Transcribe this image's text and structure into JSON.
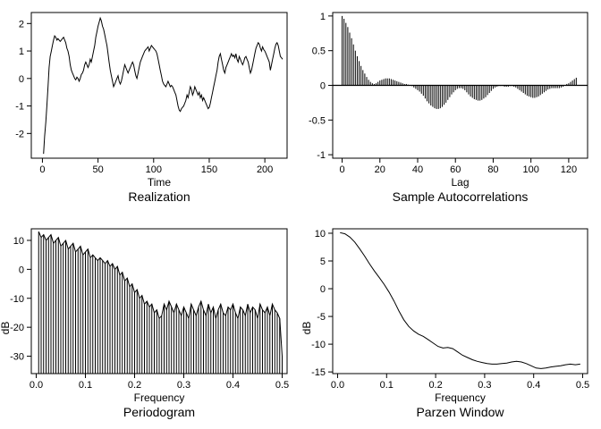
{
  "chart_data": [
    {
      "id": "realization",
      "type": "line",
      "title": "Realization",
      "xlabel": "Time",
      "ylabel": "",
      "xlim": [
        -10,
        220
      ],
      "ylim": [
        -2.9,
        2.4
      ],
      "xticks": [
        0,
        50,
        100,
        150,
        200
      ],
      "yticks": [
        -2,
        -1,
        0,
        1,
        2
      ],
      "x_start": 1,
      "x_step": 1,
      "values": [
        -2.74,
        -2.1,
        -1.6,
        -1.0,
        -0.3,
        0.4,
        0.8,
        1.0,
        1.2,
        1.4,
        1.55,
        1.5,
        1.4,
        1.45,
        1.4,
        1.35,
        1.4,
        1.45,
        1.5,
        1.4,
        1.3,
        1.1,
        1.0,
        0.8,
        0.5,
        0.3,
        0.2,
        0.1,
        0.0,
        -0.05,
        0.05,
        0.0,
        -0.1,
        0.0,
        0.15,
        0.2,
        0.3,
        0.5,
        0.6,
        0.5,
        0.4,
        0.5,
        0.7,
        0.6,
        0.8,
        1.0,
        1.2,
        1.5,
        1.7,
        1.9,
        2.05,
        2.2,
        2.1,
        1.9,
        1.8,
        1.6,
        1.4,
        1.2,
        0.9,
        0.6,
        0.3,
        0.1,
        -0.1,
        -0.3,
        -0.2,
        -0.1,
        0.0,
        0.1,
        -0.1,
        -0.2,
        -0.1,
        0.1,
        0.3,
        0.5,
        0.4,
        0.3,
        0.2,
        0.3,
        0.4,
        0.5,
        0.6,
        0.5,
        0.3,
        0.1,
        0.0,
        0.2,
        0.4,
        0.6,
        0.7,
        0.8,
        0.9,
        1.0,
        1.05,
        1.1,
        1.15,
        1.0,
        1.1,
        1.2,
        1.15,
        1.1,
        1.05,
        1.0,
        0.9,
        0.7,
        0.5,
        0.3,
        0.1,
        -0.1,
        -0.2,
        -0.25,
        -0.3,
        -0.2,
        -0.1,
        -0.2,
        -0.3,
        -0.25,
        -0.3,
        -0.4,
        -0.5,
        -0.6,
        -0.8,
        -1.0,
        -1.15,
        -1.2,
        -1.1,
        -1.05,
        -1.0,
        -0.9,
        -0.8,
        -0.6,
        -0.7,
        -0.5,
        -0.3,
        -0.4,
        -0.6,
        -0.5,
        -0.3,
        -0.4,
        -0.5,
        -0.6,
        -0.5,
        -0.7,
        -0.6,
        -0.8,
        -0.7,
        -0.8,
        -0.9,
        -1.0,
        -1.1,
        -1.05,
        -0.9,
        -0.7,
        -0.5,
        -0.3,
        -0.1,
        0.1,
        0.3,
        0.6,
        0.8,
        0.9,
        0.7,
        0.5,
        0.3,
        0.2,
        0.4,
        0.5,
        0.6,
        0.7,
        0.8,
        0.9,
        0.8,
        0.85,
        0.75,
        0.9,
        0.7,
        0.6,
        0.8,
        0.7,
        0.6,
        0.5,
        0.6,
        0.75,
        0.8,
        0.7,
        0.6,
        0.4,
        0.2,
        0.3,
        0.5,
        0.7,
        0.9,
        1.1,
        1.2,
        1.3,
        1.25,
        1.1,
        1.0,
        1.15,
        1.05,
        1.0,
        0.9,
        0.8,
        0.7,
        0.6,
        0.3,
        0.5,
        0.7,
        0.9,
        1.1,
        1.25,
        1.3,
        1.2,
        1.0,
        0.8,
        0.75,
        0.7
      ]
    },
    {
      "id": "sample-autocorrelations",
      "type": "bar",
      "title": "Sample Autocorrelations",
      "xlabel": "Lag",
      "ylabel": "",
      "xlim": [
        -5,
        130
      ],
      "ylim": [
        -1.05,
        1.05
      ],
      "xticks": [
        0,
        20,
        40,
        60,
        80,
        100,
        120
      ],
      "yticks": [
        -1.0,
        -0.5,
        0.0,
        0.5,
        1.0
      ],
      "x_start": 0,
      "x_step": 1,
      "values": [
        1.0,
        0.96,
        0.9,
        0.84,
        0.76,
        0.68,
        0.59,
        0.5,
        0.42,
        0.35,
        0.28,
        0.22,
        0.17,
        0.12,
        0.08,
        0.05,
        0.03,
        0.02,
        0.03,
        0.05,
        0.07,
        0.08,
        0.09,
        0.1,
        0.1,
        0.1,
        0.09,
        0.08,
        0.07,
        0.06,
        0.05,
        0.04,
        0.03,
        0.02,
        0.02,
        0.01,
        0.0,
        -0.01,
        -0.03,
        -0.05,
        -0.07,
        -0.09,
        -0.12,
        -0.15,
        -0.19,
        -0.23,
        -0.26,
        -0.29,
        -0.31,
        -0.33,
        -0.34,
        -0.34,
        -0.33,
        -0.31,
        -0.28,
        -0.25,
        -0.21,
        -0.17,
        -0.13,
        -0.1,
        -0.07,
        -0.05,
        -0.04,
        -0.04,
        -0.05,
        -0.07,
        -0.1,
        -0.13,
        -0.16,
        -0.18,
        -0.2,
        -0.21,
        -0.22,
        -0.22,
        -0.21,
        -0.19,
        -0.17,
        -0.14,
        -0.11,
        -0.08,
        -0.05,
        -0.03,
        -0.02,
        -0.01,
        -0.01,
        -0.01,
        -0.02,
        -0.02,
        -0.02,
        -0.01,
        -0.01,
        -0.02,
        -0.03,
        -0.05,
        -0.07,
        -0.09,
        -0.11,
        -0.13,
        -0.15,
        -0.16,
        -0.17,
        -0.18,
        -0.18,
        -0.17,
        -0.16,
        -0.14,
        -0.12,
        -0.1,
        -0.08,
        -0.06,
        -0.05,
        -0.04,
        -0.04,
        -0.04,
        -0.04,
        -0.04,
        -0.03,
        -0.02,
        0.0,
        0.02,
        0.03,
        0.05,
        0.07,
        0.09,
        0.11
      ]
    },
    {
      "id": "periodogram",
      "type": "bar",
      "title": "Periodogram",
      "xlabel": "Frequency",
      "ylabel": "dB",
      "xlim": [
        -0.01,
        0.51
      ],
      "ylim": [
        -36,
        14
      ],
      "baseline": -36,
      "xticks": [
        "0.0",
        "0.1",
        "0.2",
        "0.3",
        "0.4",
        "0.5"
      ],
      "yticks": [
        -30,
        -20,
        -10,
        0,
        10
      ],
      "x_start": 0.005,
      "x_step": 0.005,
      "values": [
        13,
        11,
        12,
        10,
        11,
        12,
        9,
        10,
        11,
        8,
        9,
        10,
        7,
        8,
        9,
        6,
        7,
        8,
        5,
        6,
        7,
        4,
        5,
        4,
        3,
        4,
        3,
        2,
        3,
        1,
        2,
        0,
        1,
        -2,
        -1,
        -4,
        -3,
        -6,
        -5,
        -8,
        -7,
        -10,
        -9,
        -12,
        -11,
        -13,
        -12,
        -15,
        -14,
        -17,
        -16,
        -12,
        -14,
        -11,
        -13,
        -15,
        -12,
        -14,
        -16,
        -13,
        -15,
        -17,
        -12,
        -14,
        -16,
        -13,
        -11,
        -14,
        -16,
        -12,
        -15,
        -13,
        -17,
        -14,
        -12,
        -15,
        -16,
        -13,
        -14,
        -12,
        -15,
        -17,
        -13,
        -14,
        -16,
        -12,
        -15,
        -13,
        -14,
        -17,
        -12,
        -14,
        -15,
        -13,
        -16,
        -12,
        -14,
        -15,
        -17,
        -30
      ]
    },
    {
      "id": "parzen-window",
      "type": "line",
      "title": "Parzen Window",
      "xlabel": "Frequency",
      "ylabel": "dB",
      "xlim": [
        -0.01,
        0.51
      ],
      "ylim": [
        -15.3,
        10.8
      ],
      "xticks": [
        "0.0",
        "0.1",
        "0.2",
        "0.3",
        "0.4",
        "0.5"
      ],
      "yticks": [
        -15,
        -10,
        -5,
        0,
        5,
        10
      ],
      "x": [
        0.005,
        0.015,
        0.025,
        0.035,
        0.045,
        0.055,
        0.065,
        0.075,
        0.085,
        0.095,
        0.105,
        0.115,
        0.125,
        0.135,
        0.145,
        0.155,
        0.165,
        0.175,
        0.185,
        0.195,
        0.205,
        0.215,
        0.225,
        0.235,
        0.245,
        0.255,
        0.265,
        0.275,
        0.285,
        0.295,
        0.305,
        0.315,
        0.325,
        0.335,
        0.345,
        0.355,
        0.365,
        0.375,
        0.385,
        0.395,
        0.405,
        0.415,
        0.425,
        0.435,
        0.445,
        0.455,
        0.465,
        0.475,
        0.485,
        0.495
      ],
      "values": [
        10.1,
        9.9,
        9.3,
        8.4,
        7.2,
        5.9,
        4.5,
        3.2,
        2.0,
        0.8,
        -0.6,
        -2.2,
        -4.0,
        -5.6,
        -6.8,
        -7.6,
        -8.2,
        -8.6,
        -9.2,
        -9.8,
        -10.4,
        -10.7,
        -10.6,
        -10.8,
        -11.4,
        -12.0,
        -12.4,
        -12.8,
        -13.1,
        -13.3,
        -13.5,
        -13.6,
        -13.6,
        -13.5,
        -13.4,
        -13.2,
        -13.1,
        -13.2,
        -13.5,
        -13.9,
        -14.3,
        -14.4,
        -14.3,
        -14.1,
        -14.0,
        -13.9,
        -13.7,
        -13.6,
        -13.7,
        -13.6
      ]
    }
  ]
}
